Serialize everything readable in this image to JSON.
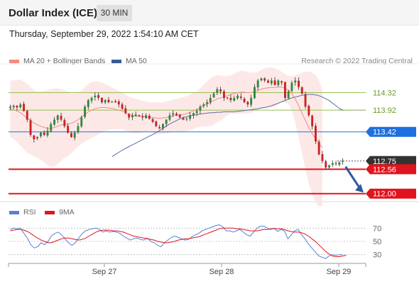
{
  "header": {
    "title": "Dollar Index (ICE)",
    "interval": "30 MIN"
  },
  "datetime": "Thursday, September 29, 2022 1:54:10 AM CET",
  "credit": "Research © 2022 Trading Central",
  "legend": {
    "items": [
      {
        "label": "MA 20 + Bollinger Bands",
        "color": "#f28b82"
      },
      {
        "label": "MA 50",
        "color": "#3a5a98"
      }
    ]
  },
  "rsi_legend": {
    "items": [
      {
        "label": "RSI",
        "color": "#5b7fd6"
      },
      {
        "label": "9MA",
        "color": "#e0141e"
      }
    ]
  },
  "colors": {
    "resistance": "#92c24e",
    "pivot": "#1e6fe0",
    "support": "#e0141e",
    "current": "#333333",
    "arrow": "#2b5a9e",
    "bull_candle": "#2e8b3a",
    "bear_candle": "#cc2222"
  },
  "chart_data": [
    {
      "type": "candlestick",
      "title": "Dollar Index (ICE)",
      "interval": "30 MIN",
      "x_ticks": [
        "Sep 27",
        "Sep 28",
        "Sep 29"
      ],
      "ylim": [
        111.8,
        114.9
      ],
      "levels": [
        {
          "value": 114.32,
          "label": "114.32",
          "kind": "resistance"
        },
        {
          "value": 113.92,
          "label": "113.92",
          "kind": "resistance"
        },
        {
          "value": 113.42,
          "label": "113.42",
          "kind": "pivot"
        },
        {
          "value": 112.75,
          "label": "112.75",
          "kind": "current"
        },
        {
          "value": 112.56,
          "label": "112.56",
          "kind": "support"
        },
        {
          "value": 112.0,
          "label": "112.00",
          "kind": "support"
        }
      ],
      "close": [
        114.0,
        114.02,
        113.98,
        114.05,
        113.9,
        113.7,
        113.35,
        113.25,
        113.3,
        113.4,
        113.35,
        113.45,
        113.6,
        113.7,
        113.8,
        113.7,
        113.55,
        113.4,
        113.3,
        113.4,
        113.55,
        113.75,
        114.0,
        114.15,
        114.2,
        114.25,
        114.2,
        114.1,
        114.15,
        114.1,
        114.12,
        114.1,
        114.05,
        113.95,
        113.85,
        113.75,
        113.8,
        113.82,
        113.78,
        113.75,
        113.8,
        113.72,
        113.65,
        113.55,
        113.5,
        113.6,
        113.7,
        113.8,
        113.85,
        113.8,
        113.75,
        113.7,
        113.72,
        113.8,
        113.85,
        113.9,
        114.0,
        114.05,
        114.1,
        114.2,
        114.3,
        114.4,
        114.35,
        114.2,
        114.2,
        114.15,
        114.2,
        114.25,
        114.2,
        114.1,
        114.05,
        114.2,
        114.45,
        114.6,
        114.65,
        114.6,
        114.55,
        114.6,
        114.5,
        114.6,
        114.55,
        114.2,
        114.35,
        114.55,
        114.6,
        114.45,
        114.3,
        114.0,
        113.8,
        113.55,
        113.2,
        112.9,
        112.75,
        112.6,
        112.65,
        112.7,
        112.68,
        112.72,
        112.75
      ],
      "ma20": [
        113.95,
        113.93,
        113.9,
        113.86,
        113.8,
        113.73,
        113.68,
        113.62,
        113.58,
        113.55,
        113.52,
        113.5,
        113.5,
        113.52,
        113.55,
        113.58,
        113.6,
        113.6,
        113.62,
        113.65,
        113.7,
        113.76,
        113.82,
        113.88,
        113.92,
        113.95,
        113.97,
        113.98,
        113.98,
        113.97,
        113.96,
        113.94,
        113.92,
        113.9,
        113.86,
        113.82,
        113.8,
        113.78,
        113.78,
        113.77,
        113.77,
        113.76,
        113.75,
        113.74,
        113.73,
        113.74,
        113.75,
        113.77,
        113.79,
        113.8,
        113.81,
        113.82,
        113.84,
        113.87,
        113.9,
        113.94,
        113.98,
        114.02,
        114.06,
        114.1,
        114.14,
        114.18,
        114.2,
        114.22,
        114.25,
        114.28,
        114.3,
        114.32,
        114.33,
        114.33,
        114.32,
        114.32,
        114.34,
        114.37,
        114.4,
        114.42,
        114.43,
        114.44,
        114.44,
        114.45,
        114.45,
        114.42,
        114.38,
        114.3,
        114.18,
        114.02,
        113.85,
        113.68,
        113.52,
        113.38,
        113.26,
        113.15,
        113.06
      ],
      "ma50": [
        112.85,
        112.9,
        112.95,
        113.0,
        113.04,
        113.08,
        113.12,
        113.16,
        113.2,
        113.24,
        113.28,
        113.32,
        113.36,
        113.4,
        113.45,
        113.5,
        113.55,
        113.6,
        113.64,
        113.68,
        113.72,
        113.75,
        113.77,
        113.79,
        113.8,
        113.82,
        113.83,
        113.84,
        113.85,
        113.86,
        113.86,
        113.87,
        113.87,
        113.88,
        113.88,
        113.88,
        113.88,
        113.89,
        113.9,
        113.91,
        113.92,
        113.93,
        113.94,
        113.95,
        113.97,
        113.98,
        114.0,
        114.02,
        114.05,
        114.08,
        114.11,
        114.14,
        114.17,
        114.2,
        114.22,
        114.24,
        114.26,
        114.27,
        114.28,
        114.28,
        114.27,
        114.25,
        114.22,
        114.18,
        114.14,
        114.08,
        114.02,
        113.96,
        113.92
      ],
      "bb_upper": [
        114.6,
        114.6,
        114.62,
        114.62,
        114.58,
        114.52,
        114.45,
        114.38,
        114.35,
        114.35,
        114.36,
        114.38,
        114.4,
        114.42,
        114.42,
        114.4,
        114.38,
        114.35,
        114.3,
        114.3,
        114.32,
        114.38,
        114.45,
        114.52,
        114.56,
        114.58,
        114.58,
        114.55,
        114.52,
        114.48,
        114.44,
        114.4,
        114.36,
        114.32,
        114.28,
        114.24,
        114.2,
        114.18,
        114.16,
        114.14,
        114.12,
        114.1,
        114.1,
        114.1,
        114.1,
        114.1,
        114.12,
        114.14,
        114.16,
        114.18,
        114.2,
        114.22,
        114.24,
        114.28,
        114.32,
        114.36,
        114.42,
        114.5,
        114.58,
        114.65,
        114.7,
        114.72,
        114.72,
        114.7,
        114.7,
        114.72,
        114.76,
        114.8,
        114.82,
        114.82,
        114.8,
        114.78,
        114.78,
        114.8,
        114.85,
        114.88,
        114.9,
        114.9,
        114.88,
        114.85,
        114.8,
        114.75,
        114.7,
        114.7,
        114.72,
        114.75,
        114.78,
        114.8,
        114.8,
        114.78,
        114.72,
        114.6,
        114.4
      ],
      "bb_lower": [
        113.3,
        113.26,
        113.18,
        113.1,
        113.02,
        112.94,
        112.9,
        112.86,
        112.82,
        112.78,
        112.72,
        112.66,
        112.62,
        112.62,
        112.68,
        112.76,
        112.82,
        112.86,
        112.94,
        113.0,
        113.08,
        113.14,
        113.2,
        113.24,
        113.28,
        113.32,
        113.36,
        113.41,
        113.44,
        113.46,
        113.48,
        113.48,
        113.48,
        113.48,
        113.44,
        113.4,
        113.4,
        113.38,
        113.4,
        113.4,
        113.42,
        113.42,
        113.4,
        113.38,
        113.36,
        113.38,
        113.38,
        113.4,
        113.42,
        113.42,
        113.42,
        113.42,
        113.44,
        113.46,
        113.48,
        113.52,
        113.54,
        113.54,
        113.54,
        113.55,
        113.58,
        113.64,
        113.68,
        113.74,
        113.8,
        113.84,
        113.84,
        113.84,
        113.84,
        113.84,
        113.84,
        113.86,
        113.9,
        113.94,
        113.95,
        113.96,
        113.96,
        113.98,
        114.0,
        114.05,
        114.1,
        114.09,
        114.06,
        113.9,
        113.64,
        113.29,
        112.92,
        112.56,
        112.24,
        111.98,
        111.8,
        111.7,
        111.72
      ]
    },
    {
      "type": "line",
      "title": "RSI",
      "series_names": [
        "RSI",
        "9MA"
      ],
      "y_ticks": [
        70,
        50,
        30
      ],
      "ylim": [
        20,
        80
      ],
      "rsi": [
        68,
        70,
        69,
        70,
        62,
        55,
        45,
        40,
        42,
        48,
        45,
        50,
        58,
        62,
        64,
        60,
        54,
        48,
        44,
        48,
        55,
        62,
        66,
        68,
        69,
        70,
        68,
        64,
        66,
        64,
        65,
        64,
        62,
        58,
        55,
        52,
        54,
        55,
        53,
        52,
        55,
        50,
        48,
        44,
        42,
        48,
        52,
        56,
        58,
        56,
        54,
        52,
        53,
        57,
        60,
        62,
        66,
        68,
        70,
        72,
        74,
        75,
        72,
        66,
        66,
        64,
        66,
        68,
        64,
        60,
        58,
        64,
        70,
        73,
        73,
        70,
        68,
        70,
        65,
        68,
        66,
        54,
        60,
        66,
        68,
        60,
        54,
        46,
        40,
        34,
        28,
        26,
        24,
        28,
        30,
        29,
        30,
        30
      ],
      "ma9": [
        66,
        67,
        68,
        68,
        67,
        65,
        62,
        58,
        55,
        52,
        50,
        48,
        48,
        50,
        52,
        54,
        55,
        55,
        54,
        53,
        52,
        53,
        55,
        58,
        61,
        64,
        66,
        67,
        67,
        67,
        66,
        66,
        65,
        64,
        62,
        60,
        58,
        57,
        56,
        55,
        54,
        53,
        52,
        50,
        49,
        48,
        48,
        49,
        50,
        52,
        53,
        54,
        54,
        55,
        56,
        57,
        59,
        61,
        63,
        65,
        67,
        69,
        70,
        70,
        70,
        70,
        69,
        69,
        68,
        67,
        66,
        66,
        66,
        67,
        68,
        68,
        69,
        69,
        69,
        69,
        68,
        66,
        65,
        64,
        64,
        63,
        61,
        58,
        54,
        50,
        45,
        40,
        35,
        31,
        28,
        27,
        27,
        28,
        29
      ]
    }
  ]
}
